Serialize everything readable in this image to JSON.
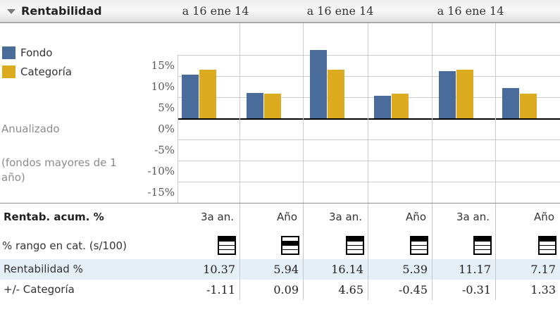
{
  "header": {
    "title": "Rentabilidad",
    "dates": [
      "a 16 ene 14",
      "a 16 ene 14",
      "a 16 ene 14"
    ]
  },
  "legend": {
    "items": [
      {
        "label": "Fondo",
        "color": "#4a6c9b"
      },
      {
        "label": "Categoría",
        "color": "#dcab1f"
      }
    ],
    "note_annualized": "Anualizado",
    "note_funds": "(fondos mayores de 1 año)"
  },
  "chart_data": {
    "type": "bar",
    "categories": [
      "3a an.",
      "Año",
      "3a an.",
      "Año",
      "3a an.",
      "Año"
    ],
    "series": [
      {
        "name": "Fondo",
        "color": "#4a6c9b",
        "values": [
          10.37,
          5.94,
          16.14,
          5.39,
          11.17,
          7.17
        ]
      },
      {
        "name": "Categoría",
        "color": "#dcab1f",
        "values": [
          11.48,
          5.85,
          11.49,
          5.84,
          11.48,
          5.84
        ]
      }
    ],
    "yticks": [
      "15%",
      "10%",
      "5%",
      "0%",
      "-5%",
      "-10%",
      "-15%"
    ],
    "ytick_values": [
      15,
      10,
      5,
      0,
      -5,
      -10,
      -15
    ],
    "ylim": [
      -17.5,
      20
    ],
    "grid": true,
    "legend_position": "left"
  },
  "table": {
    "header_label": "Rentab. acum. %",
    "columns": [
      "3a an.",
      "Año",
      "3a an.",
      "Año",
      "3a an.",
      "Año"
    ],
    "rank_row": {
      "label": "% rango en cat. (s/100)",
      "quartiles": [
        1,
        2,
        1,
        1,
        1,
        1
      ]
    },
    "value_rows": [
      {
        "label": "Rentabilidad %",
        "values": [
          "10.37",
          "5.94",
          "16.14",
          "5.39",
          "11.17",
          "7.17"
        ],
        "highlight": true
      },
      {
        "label": "+/- Categoría",
        "values": [
          "-1.11",
          "0.09",
          "4.65",
          "-0.45",
          "-0.31",
          "1.33"
        ],
        "highlight": false
      }
    ]
  },
  "colors": {
    "fondo": "#4a6c9b",
    "categoria": "#dcab1f",
    "highlight_row": "#e5eff8",
    "gridline": "#cccccc",
    "zero_line": "#000000",
    "muted_text": "#8c8c8c"
  }
}
